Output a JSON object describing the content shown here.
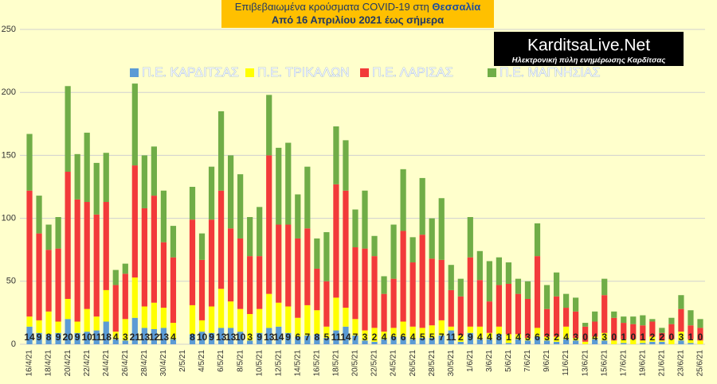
{
  "logo": {
    "name": "KarditsaLive.Net",
    "tagline": "Ηλεκτρονική πύλη ενημέρωσης Καρδίτσας"
  },
  "chart_data": {
    "type": "stacked_bar",
    "title": "Επιβεβαιωμένα κρούσματα COVID-19 στη",
    "title_highlight": "Θεσσαλία",
    "subtitle": "Από 16 Απριλίου 2021 έως σήμερα",
    "categories": [
      "16/4/21",
      null,
      "18/4/21",
      null,
      "20/4/21",
      null,
      "22/4/21",
      null,
      "24/4/21",
      null,
      "26/4/21",
      null,
      "28/4/21",
      null,
      "30/4/21",
      null,
      "2/5/21",
      null,
      "4/5/21",
      null,
      "6/5/21",
      null,
      "8/5/21",
      null,
      "10/5/21",
      null,
      "12/5/21",
      null,
      "14/5/21",
      null,
      "16/5/21",
      null,
      "18/5/21",
      null,
      "20/5/21",
      null,
      "22/5/21",
      null,
      "24/5/21",
      null,
      "26/5/21",
      null,
      "28/5/21",
      null,
      "30/5/21",
      null,
      "1/6/21",
      null,
      "3/6/21",
      null,
      "5/6/21",
      null,
      "7/6/21",
      null,
      "9/6/21",
      null,
      "11/6/21",
      null,
      "13/6/21",
      null,
      "15/6/21",
      null,
      "17/6/21",
      null,
      "19/6/21",
      null,
      "21/6/21",
      null,
      "23/6/21",
      null,
      "25/6/21"
    ],
    "series": [
      {
        "name": "Π.Ε. ΚΑΡΔΙΤΣΑΣ",
        "color": "#5b9bd5",
        "values": [
          14,
          9,
          8,
          9,
          20,
          9,
          10,
          11,
          18,
          4,
          3,
          21,
          13,
          12,
          13,
          4,
          null,
          8,
          10,
          9,
          13,
          13,
          10,
          3,
          9,
          13,
          14,
          9,
          6,
          7,
          8,
          5,
          11,
          14,
          7,
          3,
          2,
          4,
          6,
          6,
          4,
          5,
          5,
          7,
          11,
          2,
          9,
          4,
          4,
          8,
          1,
          4,
          3,
          6,
          3,
          2,
          4,
          3,
          0,
          4,
          3,
          0,
          1,
          0,
          1,
          2,
          2,
          0,
          3,
          1,
          0
        ]
      },
      {
        "name": "Π.Ε. ΤΡΙΚΑΛΩΝ",
        "color": "#ffff00",
        "values": [
          8,
          10,
          18,
          9,
          16,
          9,
          18,
          11,
          25,
          6,
          17,
          32,
          17,
          21,
          16,
          13,
          null,
          23,
          9,
          21,
          31,
          21,
          18,
          21,
          19,
          27,
          19,
          21,
          15,
          24,
          19,
          9,
          26,
          15,
          13,
          8,
          11,
          6,
          7,
          12,
          10,
          8,
          10,
          12,
          3,
          5,
          5,
          10,
          5,
          6,
          7,
          4,
          2,
          7,
          3,
          4,
          10,
          2,
          2,
          2,
          6,
          3,
          3,
          4,
          2,
          4,
          1,
          4,
          7,
          3,
          3
        ]
      },
      {
        "name": "Π.Ε. ΛΑΡΙΣΑΣ",
        "color": "#f23a3a",
        "values": [
          100,
          69,
          49,
          58,
          101,
          97,
          85,
          81,
          70,
          37,
          36,
          89,
          78,
          85,
          52,
          52,
          null,
          68,
          48,
          69,
          78,
          58,
          56,
          46,
          42,
          110,
          62,
          65,
          63,
          61,
          33,
          36,
          90,
          93,
          57,
          65,
          57,
          30,
          39,
          72,
          51,
          74,
          53,
          48,
          29,
          31,
          55,
          37,
          25,
          33,
          40,
          32,
          31,
          57,
          22,
          32,
          15,
          21,
          12,
          12,
          30,
          18,
          13,
          12,
          12,
          12,
          6,
          12,
          18,
          11,
          10
        ]
      },
      {
        "name": "Π.Ε. ΜΑΓΝΗΣΙΑΣ",
        "color": "#70ad47",
        "values": [
          45,
          30,
          20,
          25,
          68,
          36,
          55,
          41,
          39,
          12,
          8,
          65,
          42,
          39,
          41,
          25,
          null,
          26,
          21,
          42,
          63,
          58,
          51,
          31,
          39,
          48,
          61,
          65,
          35,
          49,
          24,
          39,
          46,
          40,
          30,
          46,
          16,
          14,
          43,
          49,
          20,
          45,
          32,
          49,
          20,
          14,
          32,
          23,
          32,
          22,
          17,
          12,
          14,
          26,
          19,
          19,
          11,
          11,
          3,
          8,
          13,
          5,
          5,
          6,
          8,
          2,
          4,
          5,
          11,
          12,
          7
        ]
      }
    ],
    "ylim": [
      0,
      250
    ],
    "yticks": [
      0,
      50,
      100,
      150,
      200,
      250
    ],
    "grid": true,
    "legend": "top"
  }
}
